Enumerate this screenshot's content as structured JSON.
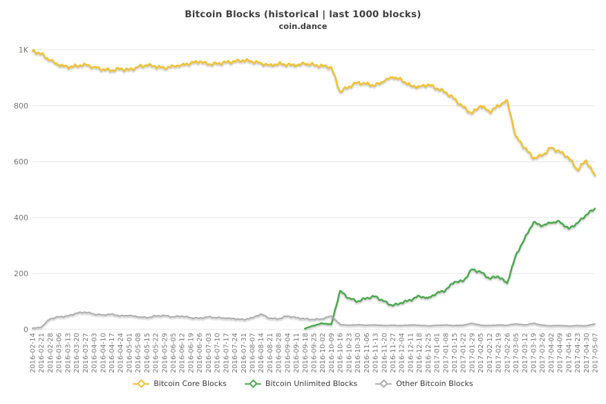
{
  "chart_data": {
    "type": "line",
    "title": "Bitcoin Blocks (historical | last 1000 blocks)",
    "subtitle": "coin.dance",
    "xlabel": "",
    "ylabel": "",
    "ylim": [
      0,
      1000
    ],
    "grid": true,
    "legend_position": "bottom",
    "x_tick_rotation": -90,
    "yticks": [
      {
        "value": 0,
        "label": "0"
      },
      {
        "value": 200,
        "label": "200"
      },
      {
        "value": 400,
        "label": "400"
      },
      {
        "value": 600,
        "label": "600"
      },
      {
        "value": 800,
        "label": "800"
      },
      {
        "value": 1000,
        "label": "1K"
      }
    ],
    "x": [
      "2016-02-14",
      "2016-02-21",
      "2016-02-28",
      "2016-03-06",
      "2016-03-13",
      "2016-03-20",
      "2016-03-27",
      "2016-04-03",
      "2016-04-10",
      "2016-04-17",
      "2016-04-24",
      "2016-05-01",
      "2016-05-08",
      "2016-05-15",
      "2016-05-22",
      "2016-05-29",
      "2016-06-05",
      "2016-06-12",
      "2016-06-19",
      "2016-06-26",
      "2016-07-03",
      "2016-07-10",
      "2016-07-17",
      "2016-07-24",
      "2016-07-31",
      "2016-08-07",
      "2016-08-14",
      "2016-08-21",
      "2016-08-28",
      "2016-09-04",
      "2016-09-11",
      "2016-09-18",
      "2016-09-25",
      "2016-10-02",
      "2016-10-09",
      "2016-10-16",
      "2016-10-23",
      "2016-10-30",
      "2016-11-06",
      "2016-11-13",
      "2016-11-20",
      "2016-11-27",
      "2016-12-04",
      "2016-12-11",
      "2016-12-18",
      "2016-12-25",
      "2017-01-01",
      "2017-01-08",
      "2017-01-15",
      "2017-01-22",
      "2017-01-29",
      "2017-02-05",
      "2017-02-12",
      "2017-02-19",
      "2017-02-26",
      "2017-03-05",
      "2017-03-12",
      "2017-03-19",
      "2017-03-26",
      "2017-04-02",
      "2017-04-09",
      "2017-04-16",
      "2017-04-23",
      "2017-04-30",
      "2017-05-07"
    ],
    "series": [
      {
        "name": "Bitcoin Core Blocks",
        "color": "#F0C232",
        "values": [
          997,
          985,
          962,
          945,
          938,
          942,
          948,
          938,
          930,
          926,
          932,
          928,
          938,
          945,
          940,
          935,
          942,
          946,
          952,
          958,
          948,
          950,
          955,
          958,
          962,
          958,
          952,
          945,
          950,
          946,
          944,
          950,
          946,
          942,
          938,
          850,
          868,
          884,
          878,
          872,
          888,
          902,
          892,
          872,
          868,
          876,
          862,
          848,
          825,
          795,
          772,
          800,
          778,
          800,
          820,
          690,
          650,
          612,
          622,
          650,
          635,
          615,
          570,
          605,
          550
        ]
      },
      {
        "name": "Bitcoin Unlimited Blocks",
        "color": "#4BA84F",
        "values": [
          null,
          null,
          null,
          null,
          null,
          null,
          null,
          null,
          null,
          null,
          null,
          null,
          null,
          null,
          null,
          null,
          null,
          null,
          null,
          null,
          null,
          null,
          null,
          null,
          null,
          null,
          null,
          null,
          null,
          null,
          null,
          3,
          14,
          22,
          18,
          138,
          112,
          100,
          112,
          118,
          100,
          85,
          95,
          105,
          120,
          112,
          130,
          140,
          170,
          172,
          215,
          205,
          182,
          190,
          165,
          265,
          325,
          383,
          370,
          382,
          385,
          360,
          380,
          410,
          432
        ]
      },
      {
        "name": "Other Bitcoin Blocks",
        "color": "#ACACAC",
        "values": [
          4,
          8,
          38,
          45,
          48,
          58,
          62,
          55,
          52,
          55,
          48,
          50,
          45,
          42,
          48,
          50,
          45,
          48,
          42,
          40,
          45,
          42,
          40,
          38,
          35,
          42,
          55,
          40,
          38,
          48,
          42,
          38,
          35,
          38,
          48,
          18,
          15,
          17,
          15,
          16,
          14,
          15,
          14,
          16,
          15,
          13,
          15,
          16,
          14,
          15,
          22,
          15,
          14,
          16,
          15,
          20,
          16,
          22,
          15,
          13,
          14,
          12,
          14,
          13,
          20
        ]
      }
    ]
  }
}
